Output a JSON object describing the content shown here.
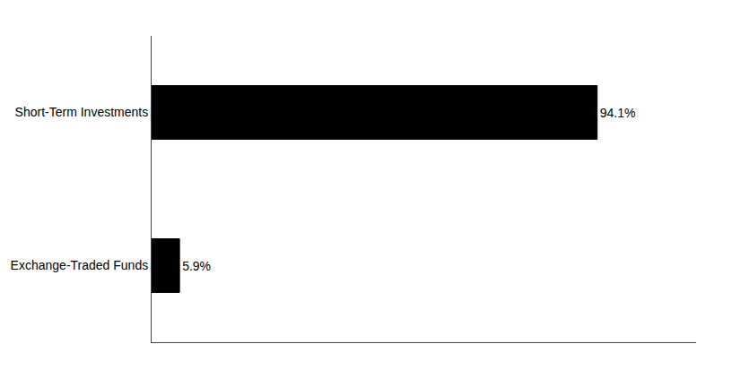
{
  "chart_data": {
    "type": "bar",
    "orientation": "horizontal",
    "categories": [
      "Exchange-Traded Funds",
      "Short-Term Investments"
    ],
    "values": [
      5.9,
      94.1
    ],
    "value_labels": [
      "5.9%",
      "94.1%"
    ],
    "data_labels": true,
    "color": "#000000",
    "xlim": [
      0,
      115
    ],
    "xticks": [],
    "tick_labels": "y",
    "grid": false
  }
}
